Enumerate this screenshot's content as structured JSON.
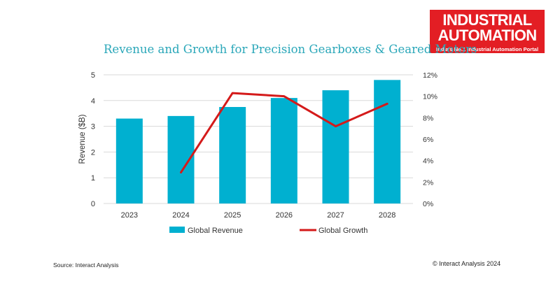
{
  "logo": {
    "line1": "INDUSTRIAL",
    "line2": "AUTOMATION",
    "tagline": "India's No.1 Industrial Automation Portal"
  },
  "footer": {
    "source": "Source: Interact Analysis",
    "copyright": "© Interact Analysis 2024"
  },
  "colors": {
    "bar": "#00b0d0",
    "line": "#d41a1a",
    "title": "#2aa7b9",
    "grid": "#d9d9d9"
  },
  "chart_data": {
    "type": "bar",
    "title": "Revenue and Growth for Precision Gearboxes & Geared Motors",
    "xlabel": "",
    "ylabel": "Revenue ($B)",
    "categories": [
      "2023",
      "2024",
      "2025",
      "2026",
      "2027",
      "2028"
    ],
    "ylim": [
      0,
      5
    ],
    "y_ticks": [
      0,
      1,
      2,
      3,
      4,
      5
    ],
    "y2lim": [
      0,
      12
    ],
    "y2_ticks": [
      "0%",
      "2%",
      "4%",
      "6%",
      "8%",
      "10%",
      "12%"
    ],
    "series": [
      {
        "name": "Global Revenue",
        "type": "bar",
        "axis": "left",
        "values": [
          3.3,
          3.4,
          3.75,
          4.1,
          4.4,
          4.8
        ]
      },
      {
        "name": "Global Growth",
        "type": "line",
        "axis": "right",
        "values": [
          null,
          2.9,
          10.3,
          10.0,
          7.2,
          9.3
        ]
      }
    ],
    "grid": true,
    "legend_position": "bottom"
  }
}
